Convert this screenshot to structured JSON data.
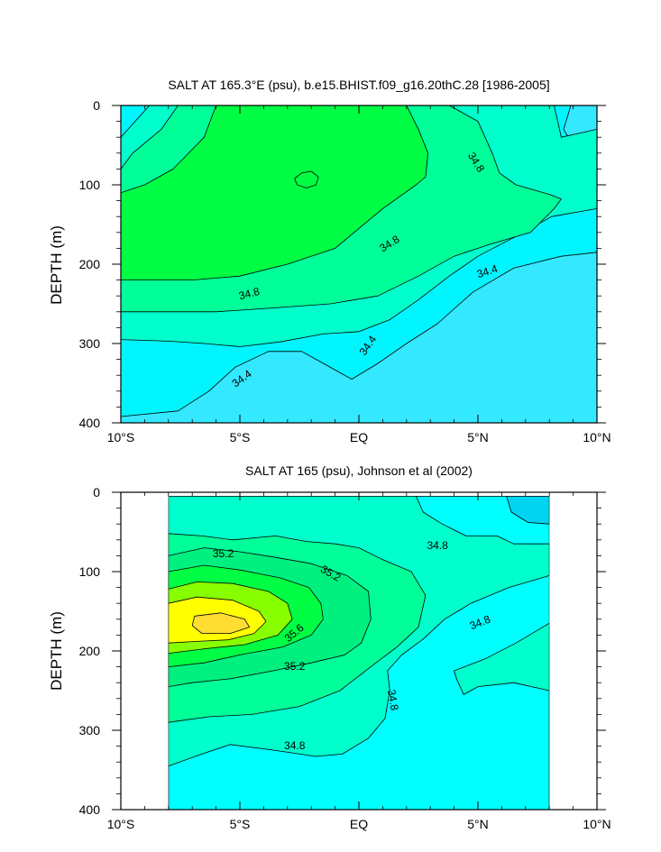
{
  "colors": {
    "c34_0": "#00ffff",
    "c34_4": "#33e8ff",
    "c34_6": "#00f5ff",
    "c34_8": "#00ffcc",
    "c35_0": "#00ff99",
    "c35_2": "#00f080",
    "c35_4": "#00ff44",
    "c35_6": "#88ff00",
    "c35_8": "#ffff00",
    "c36_0": "#ffdd33",
    "deep_cyan": "#00d4f0",
    "line": "#000000"
  },
  "chart_data": [
    {
      "type": "contour",
      "title": "SALT AT 165.3°E (psu), b.e15.BHIST.f09_g16.20thC.28 [1986-2005]",
      "xlabel": "",
      "ylabel": "DEPTH (m)",
      "xlim": [
        -10,
        10
      ],
      "ylim": [
        400,
        0
      ],
      "xticks": [
        -10,
        -5,
        0,
        5,
        10
      ],
      "xtick_labels": [
        "10°S",
        "5°S",
        "EQ",
        "5°N",
        "10°N"
      ],
      "yticks": [
        0,
        100,
        200,
        300,
        400
      ],
      "ytick_labels": [
        "0",
        "100",
        "200",
        "300",
        "400"
      ],
      "data_extent": [
        -10,
        10
      ],
      "contour_interval": 0.2,
      "levels": [
        {
          "value": 34.4,
          "color": "c34_4",
          "points": [
            [
              -10,
              0
            ],
            [
              10,
              0
            ],
            [
              10,
              400
            ],
            [
              -10,
              400
            ]
          ]
        },
        {
          "value": 34.6,
          "color": "c34_6",
          "points": [
            [
              -10,
              0
            ],
            [
              8.9,
              0
            ],
            [
              8.6,
              30
            ],
            [
              9.2,
              60
            ],
            [
              10,
              35
            ],
            [
              10,
              185
            ],
            [
              8.5,
              190
            ],
            [
              6.5,
              205
            ],
            [
              4.8,
              235
            ],
            [
              3.3,
              275
            ],
            [
              2.0,
              300
            ],
            [
              0.8,
              325
            ],
            [
              -0.3,
              345
            ],
            [
              -1.2,
              330
            ],
            [
              -2.4,
              310
            ],
            [
              -3.8,
              310
            ],
            [
              -5.2,
              330
            ],
            [
              -6.3,
              360
            ],
            [
              -7.6,
              385
            ],
            [
              -10,
              392
            ]
          ]
        },
        {
          "value": 34.8,
          "color": "c34_8",
          "points": [
            [
              -10,
              40
            ],
            [
              -9.4,
              20
            ],
            [
              -8.8,
              0
            ],
            [
              8.2,
              0
            ],
            [
              8.5,
              40
            ],
            [
              10,
              30
            ],
            [
              10,
              130
            ],
            [
              8.1,
              140
            ],
            [
              6.6,
              165
            ],
            [
              5.0,
              190
            ],
            [
              3.8,
              215
            ],
            [
              2.5,
              245
            ],
            [
              1.3,
              270
            ],
            [
              0.0,
              285
            ],
            [
              -1.5,
              288
            ],
            [
              -3.3,
              298
            ],
            [
              -5.0,
              304
            ],
            [
              -6.5,
              300
            ],
            [
              -8,
              297
            ],
            [
              -10,
              295
            ]
          ]
        },
        {
          "value": 35.0,
          "color": "c35_0",
          "points": [
            [
              -10,
              80
            ],
            [
              -9.5,
              60
            ],
            [
              -8.3,
              30
            ],
            [
              -7.6,
              0
            ],
            [
              3.8,
              0
            ],
            [
              5.0,
              20
            ],
            [
              5.6,
              60
            ],
            [
              5.9,
              85
            ],
            [
              6.6,
              100
            ],
            [
              8.0,
              112
            ],
            [
              8.5,
              118
            ],
            [
              8.2,
              130
            ],
            [
              7.2,
              160
            ],
            [
              5.5,
              175
            ],
            [
              4.0,
              190
            ],
            [
              2.5,
              215
            ],
            [
              0.8,
              240
            ],
            [
              -1.2,
              250
            ],
            [
              -3.5,
              255
            ],
            [
              -6,
              260
            ],
            [
              -10,
              260
            ]
          ]
        },
        {
          "value": 35.2,
          "color": "c35_4",
          "points": [
            [
              -10,
              110
            ],
            [
              -9.0,
              100
            ],
            [
              -7.8,
              80
            ],
            [
              -6.5,
              40
            ],
            [
              -6.0,
              0
            ],
            [
              2.0,
              0
            ],
            [
              2.5,
              30
            ],
            [
              2.9,
              60
            ],
            [
              2.8,
              90
            ],
            [
              2.4,
              100
            ],
            [
              1.0,
              130
            ],
            [
              -1.0,
              180
            ],
            [
              -3.0,
              200
            ],
            [
              -5.0,
              215
            ],
            [
              -7,
              220
            ],
            [
              -10,
              220
            ]
          ]
        },
        {
          "value": 35.4,
          "color": "c35_4",
          "points": [
            [
              -2.4,
              85
            ],
            [
              -2.0,
              83
            ],
            [
              -1.7,
              90
            ],
            [
              -1.8,
              100
            ],
            [
              -2.2,
              104
            ],
            [
              -2.6,
              100
            ],
            [
              -2.7,
              92
            ]
          ]
        }
      ],
      "labels": [
        {
          "text": "34.8",
          "x": 4.9,
          "y": 72,
          "angle": 58
        },
        {
          "text": "34.8",
          "x": 1.3,
          "y": 175,
          "angle": -32
        },
        {
          "text": "34.8",
          "x": -4.6,
          "y": 238,
          "angle": -14
        },
        {
          "text": "34.4",
          "x": 5.4,
          "y": 210,
          "angle": -18
        },
        {
          "text": "34.4",
          "x": 0.4,
          "y": 303,
          "angle": -55
        },
        {
          "text": "34.4",
          "x": -4.9,
          "y": 345,
          "angle": -36
        }
      ]
    },
    {
      "type": "contour",
      "title": "SALT AT 165 (psu), Johnson et al (2002)",
      "xlabel": "",
      "ylabel": "DEPTH (m)",
      "xlim": [
        -10,
        10
      ],
      "ylim": [
        400,
        0
      ],
      "xticks": [
        -10,
        -5,
        0,
        5,
        10
      ],
      "xtick_labels": [
        "10°S",
        "5°S",
        "EQ",
        "5°N",
        "10°N"
      ],
      "yticks": [
        0,
        100,
        200,
        300,
        400
      ],
      "ytick_labels": [
        "0",
        "100",
        "200",
        "300",
        "400"
      ],
      "data_extent": [
        -8,
        8
      ],
      "contour_interval": 0.2,
      "levels": [
        {
          "value": 34.6,
          "color": "c34_0",
          "points": [
            [
              -8,
              5
            ],
            [
              8,
              5
            ],
            [
              8,
              400
            ],
            [
              -8,
              400
            ]
          ]
        },
        {
          "value": 34.8,
          "color": "c34_8",
          "points": [
            [
              -8,
              5
            ],
            [
              2.4,
              5
            ],
            [
              2.7,
              25
            ],
            [
              3.5,
              40
            ],
            [
              4.5,
              55
            ],
            [
              5.8,
              55
            ],
            [
              6.5,
              65
            ],
            [
              8,
              65
            ],
            [
              8,
              105
            ],
            [
              6.3,
              120
            ],
            [
              4.7,
              140
            ],
            [
              3.6,
              160
            ],
            [
              2.7,
              185
            ],
            [
              1.8,
              205
            ],
            [
              1.2,
              225
            ],
            [
              1.3,
              250
            ],
            [
              1.1,
              285
            ],
            [
              0.4,
              310
            ],
            [
              -0.7,
              330
            ],
            [
              -1.8,
              333
            ],
            [
              -3.6,
              325
            ],
            [
              -5.4,
              318
            ],
            [
              -6.6,
              330
            ],
            [
              -8,
              345
            ],
            [
              -8,
              400
            ],
            [
              8,
              400
            ],
            [
              8,
              250
            ],
            [
              6.5,
              240
            ],
            [
              5,
              245
            ],
            [
              4.4,
              255
            ],
            [
              4.1,
              235
            ],
            [
              4.0,
              225
            ],
            [
              5.3,
              210
            ],
            [
              6.6,
              190
            ],
            [
              8,
              165
            ],
            [
              8,
              400
            ],
            [
              -8,
              400
            ]
          ]
        },
        {
          "value": 35.0,
          "color": "c35_0",
          "points": [
            [
              -8,
              52
            ],
            [
              -6.6,
              55
            ],
            [
              -5.3,
              60
            ],
            [
              -3.5,
              55
            ],
            [
              -2.2,
              62
            ],
            [
              -1.0,
              65
            ],
            [
              0,
              70
            ],
            [
              1.0,
              85
            ],
            [
              2.2,
              100
            ],
            [
              2.8,
              130
            ],
            [
              2.5,
              170
            ],
            [
              1.6,
              195
            ],
            [
              0.5,
              220
            ],
            [
              -0.8,
              250
            ],
            [
              -2.5,
              270
            ],
            [
              -4.5,
              280
            ],
            [
              -6.3,
              283
            ],
            [
              -8,
              290
            ]
          ]
        },
        {
          "value": 35.2,
          "color": "c35_2",
          "points": [
            [
              -8,
              80
            ],
            [
              -6.5,
              70
            ],
            [
              -5,
              75
            ],
            [
              -3.5,
              82
            ],
            [
              -2,
              90
            ],
            [
              -0.5,
              105
            ],
            [
              0.4,
              125
            ],
            [
              0.5,
              160
            ],
            [
              0.1,
              190
            ],
            [
              -0.6,
              205
            ],
            [
              -2.0,
              215
            ],
            [
              -3.6,
              225
            ],
            [
              -5.4,
              235
            ],
            [
              -7,
              240
            ],
            [
              -8,
              245
            ]
          ]
        },
        {
          "value": 35.4,
          "color": "c35_4",
          "points": [
            [
              -8,
              100
            ],
            [
              -6.5,
              92
            ],
            [
              -5,
              98
            ],
            [
              -3.3,
              108
            ],
            [
              -2.1,
              120
            ],
            [
              -1.6,
              140
            ],
            [
              -1.5,
              160
            ],
            [
              -2.0,
              180
            ],
            [
              -3.2,
              195
            ],
            [
              -5,
              205
            ],
            [
              -6.5,
              215
            ],
            [
              -8,
              220
            ]
          ]
        },
        {
          "value": 35.6,
          "color": "c35_6",
          "points": [
            [
              -8,
              122
            ],
            [
              -6.8,
              113
            ],
            [
              -5.3,
              115
            ],
            [
              -3.8,
              125
            ],
            [
              -3,
              140
            ],
            [
              -2.8,
              160
            ],
            [
              -3.4,
              180
            ],
            [
              -4.8,
              192
            ],
            [
              -6.4,
              197
            ],
            [
              -8,
              203
            ]
          ]
        },
        {
          "value": 35.8,
          "color": "c35_8",
          "points": [
            [
              -8,
              140
            ],
            [
              -6.8,
              132
            ],
            [
              -5.3,
              136
            ],
            [
              -4.2,
              150
            ],
            [
              -3.9,
              163
            ],
            [
              -4.4,
              178
            ],
            [
              -5.5,
              186
            ],
            [
              -6.8,
              188
            ],
            [
              -8,
              190
            ]
          ]
        },
        {
          "value": 36.0,
          "color": "c36_0",
          "points": [
            [
              -6.9,
              156
            ],
            [
              -5.8,
              152
            ],
            [
              -4.8,
              160
            ],
            [
              -4.6,
              170
            ],
            [
              -5.4,
              178
            ],
            [
              -6.6,
              178
            ],
            [
              -7.0,
              168
            ]
          ]
        },
        {
          "value": 34.4,
          "color": "deep_cyan",
          "points": [
            [
              6.2,
              5
            ],
            [
              8,
              5
            ],
            [
              8,
              40
            ],
            [
              7.1,
              38
            ],
            [
              6.4,
              25
            ]
          ]
        }
      ],
      "labels": [
        {
          "text": "35.2",
          "x": -5.7,
          "y": 78,
          "angle": 0
        },
        {
          "text": "35.2",
          "x": -1.2,
          "y": 103,
          "angle": 30
        },
        {
          "text": "35.6",
          "x": -2.7,
          "y": 178,
          "angle": -40
        },
        {
          "text": "35.2",
          "x": -2.7,
          "y": 220,
          "angle": 0
        },
        {
          "text": "34.8",
          "x": 3.3,
          "y": 68,
          "angle": 0
        },
        {
          "text": "34.8",
          "x": 5.1,
          "y": 165,
          "angle": -22
        },
        {
          "text": "34.8",
          "x": 1.4,
          "y": 262,
          "angle": 80
        },
        {
          "text": "34.8",
          "x": -2.7,
          "y": 320,
          "angle": 0
        }
      ]
    }
  ]
}
